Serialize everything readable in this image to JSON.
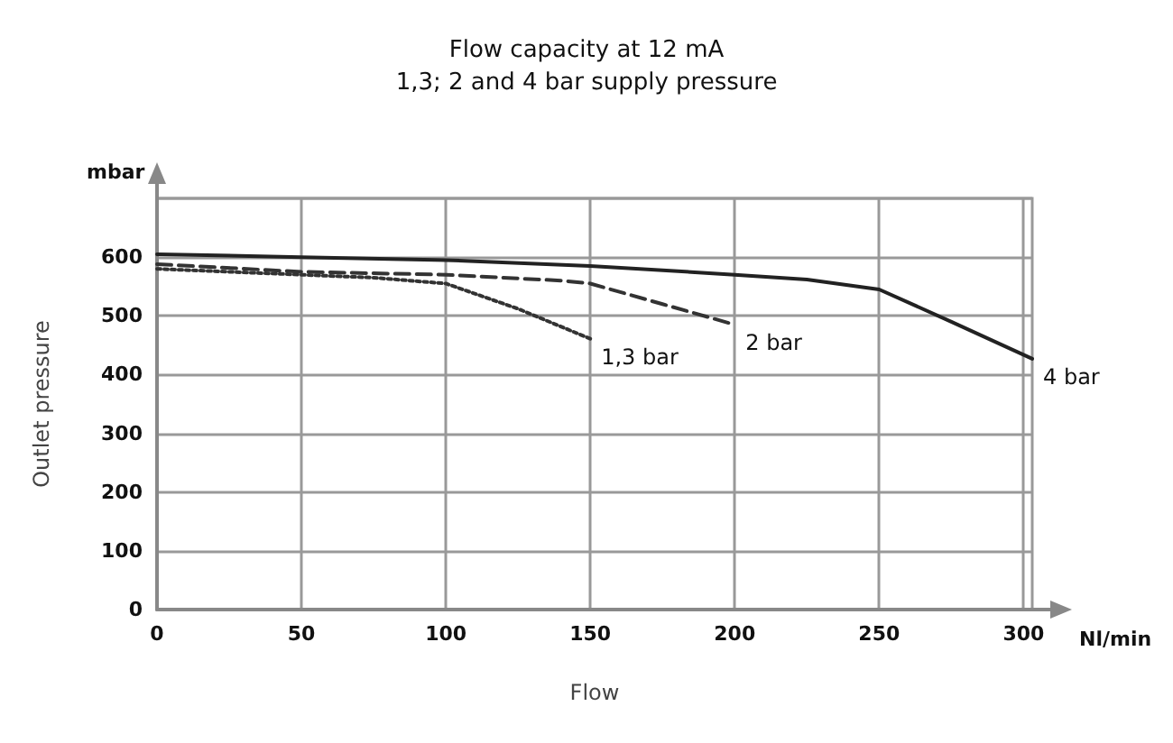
{
  "chart_data": {
    "type": "line",
    "title": "Flow capacity at 12 mA\n1,3; 2 and 4 bar supply pressure",
    "xlabel": "Flow",
    "ylabel": "Outlet pressure",
    "annotations": [
      "mbar",
      "Nl/min"
    ],
    "xlim": [
      0,
      303
    ],
    "xticks": [
      0,
      50,
      100,
      150,
      200,
      250,
      300
    ],
    "ylim": [
      0,
      700
    ],
    "yticks": [
      0,
      100,
      200,
      300,
      400,
      500,
      600,
      {
        "value": 700,
        "label": null
      }
    ],
    "grid": true,
    "legend": false,
    "marker": "none",
    "series": [
      {
        "name": "1,3 bar",
        "color": "#333333",
        "line_style": "dotted",
        "x": [
          0,
          50,
          75,
          100,
          125,
          150
        ],
        "values": [
          580,
          570,
          565,
          555,
          512,
          461
        ]
      },
      {
        "name": "2 bar",
        "color": "#333333",
        "line_style": "dashed",
        "x": [
          0,
          50,
          100,
          140,
          150,
          175,
          200
        ],
        "values": [
          588,
          575,
          570,
          560,
          555,
          520,
          485
        ]
      },
      {
        "name": "4 bar",
        "color": "#222222",
        "line_style": "solid",
        "x": [
          0,
          50,
          100,
          150,
          200,
          225,
          250,
          275,
          303
        ],
        "values": [
          605,
          600,
          595,
          585,
          570,
          562,
          545,
          490,
          427
        ]
      }
    ]
  }
}
